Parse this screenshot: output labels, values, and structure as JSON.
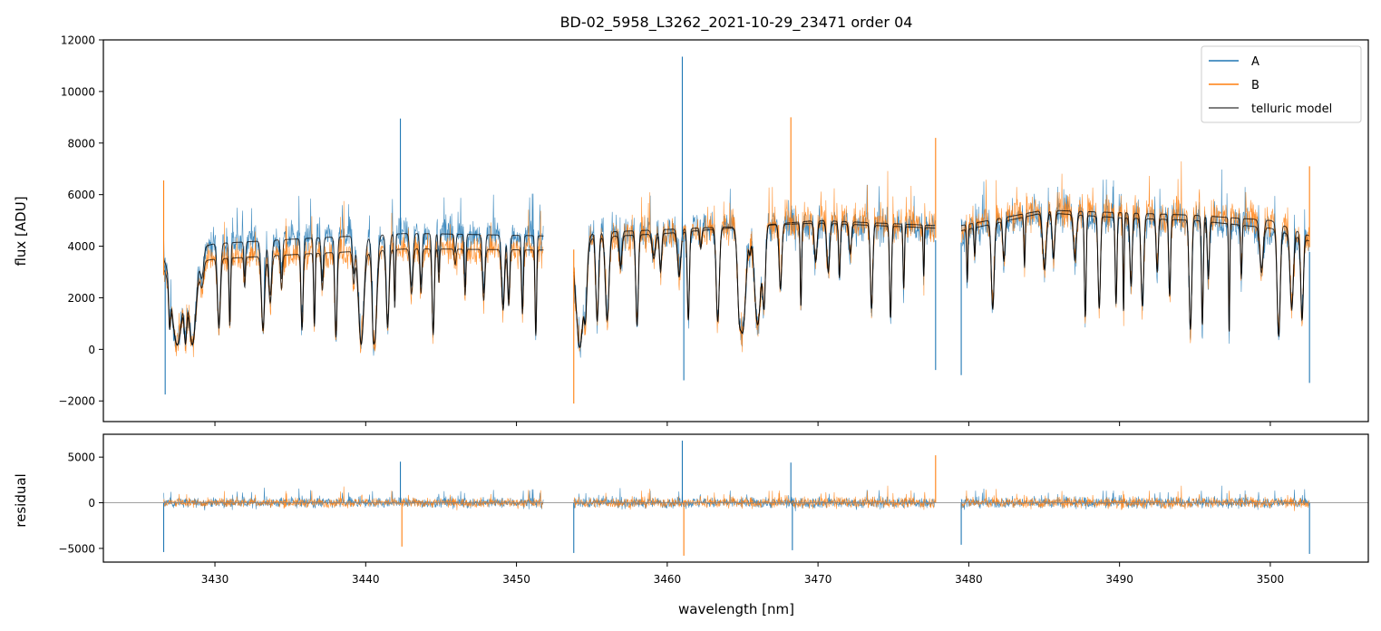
{
  "chart_data": [
    {
      "panel": "main",
      "type": "line",
      "title": "BD-02_5958_L3262_2021-10-29_23471  order 04",
      "xlabel": "",
      "ylabel": "flux [ADU]",
      "xlim": [
        3422.6,
        3506.5
      ],
      "ylim": [
        -2800,
        12000
      ],
      "yticks": [
        -2000,
        0,
        2000,
        4000,
        6000,
        8000,
        10000,
        12000
      ],
      "ytick_labels": [
        "−2000",
        "0",
        "2000",
        "4000",
        "6000",
        "8000",
        "10000",
        "12000"
      ],
      "xticks": [
        3430,
        3440,
        3450,
        3460,
        3470,
        3480,
        3490,
        3500
      ],
      "legend": {
        "placement": "top-right",
        "entries": [
          "A",
          "B",
          "telluric model"
        ]
      },
      "segments": [
        [
          3426.6,
          3451.8
        ],
        [
          3453.8,
          3477.8
        ],
        [
          3479.5,
          3502.6
        ]
      ],
      "series": [
        {
          "name": "A",
          "color": "#1f77b4",
          "continuum": [
            3600,
            4100,
            4300,
            4500,
            4400,
            4500,
            4650,
            4900,
            4700,
            4600,
            5300,
            5100,
            5000,
            4700,
            4200
          ],
          "continuum_x": [
            3426.6,
            3430,
            3436,
            3443,
            3451.8,
            3453.8,
            3460,
            3470,
            3477.8,
            3479.5,
            3485,
            3490,
            3495,
            3500,
            3502.6
          ]
        },
        {
          "name": "B",
          "color": "#ff7f0e",
          "continuum": [
            3200,
            3500,
            3700,
            3900,
            3850,
            4300,
            4500,
            5000,
            4800,
            4800,
            5400,
            5300,
            5200,
            5000,
            4400
          ],
          "continuum_x": [
            3426.6,
            3430,
            3436,
            3443,
            3451.8,
            3453.8,
            3460,
            3470,
            3477.8,
            3479.5,
            3485,
            3490,
            3495,
            3500,
            3502.6
          ]
        },
        {
          "name": "telluric model",
          "color": "#000000"
        }
      ],
      "spikes": [
        {
          "x": 3426.6,
          "y": 6550,
          "series": "B"
        },
        {
          "x": 3426.7,
          "y": -1750,
          "series": "A"
        },
        {
          "x": 3442.3,
          "y": 8950,
          "series": "A"
        },
        {
          "x": 3453.8,
          "y": -2100,
          "series": "B"
        },
        {
          "x": 3461.0,
          "y": 11350,
          "series": "A"
        },
        {
          "x": 3461.1,
          "y": -1200,
          "series": "A"
        },
        {
          "x": 3468.2,
          "y": 9000,
          "series": "B"
        },
        {
          "x": 3477.8,
          "y": 8200,
          "series": "B"
        },
        {
          "x": 3477.8,
          "y": -800,
          "series": "A"
        },
        {
          "x": 3479.5,
          "y": -1000,
          "series": "A"
        },
        {
          "x": 3502.6,
          "y": 7100,
          "series": "B"
        },
        {
          "x": 3502.6,
          "y": -1300,
          "series": "A"
        }
      ]
    },
    {
      "panel": "residual",
      "type": "line",
      "xlabel": "wavelength [nm]",
      "ylabel": "residual",
      "xlim": [
        3422.6,
        3506.5
      ],
      "ylim": [
        -6500,
        7500
      ],
      "yticks": [
        -5000,
        0,
        5000
      ],
      "ytick_labels": [
        "−5000",
        "0",
        "5000"
      ],
      "xticks": [
        3430,
        3440,
        3450,
        3460,
        3470,
        3480,
        3490,
        3500
      ],
      "xtick_labels": [
        "3430",
        "3440",
        "3450",
        "3460",
        "3470",
        "3480",
        "3490",
        "3500"
      ],
      "series": [
        {
          "name": "A",
          "color": "#1f77b4"
        },
        {
          "name": "B",
          "color": "#ff7f0e"
        }
      ],
      "spikes": [
        {
          "x": 3426.6,
          "y": -5400
        },
        {
          "x": 3442.3,
          "y": 4500
        },
        {
          "x": 3442.4,
          "y": -4800
        },
        {
          "x": 3453.8,
          "y": -5500
        },
        {
          "x": 3461.0,
          "y": 6800
        },
        {
          "x": 3461.1,
          "y": -5800
        },
        {
          "x": 3468.2,
          "y": 4400
        },
        {
          "x": 3468.3,
          "y": -5200
        },
        {
          "x": 3477.8,
          "y": 5200
        },
        {
          "x": 3479.5,
          "y": -4600
        },
        {
          "x": 3502.6,
          "y": -5600
        }
      ]
    }
  ]
}
